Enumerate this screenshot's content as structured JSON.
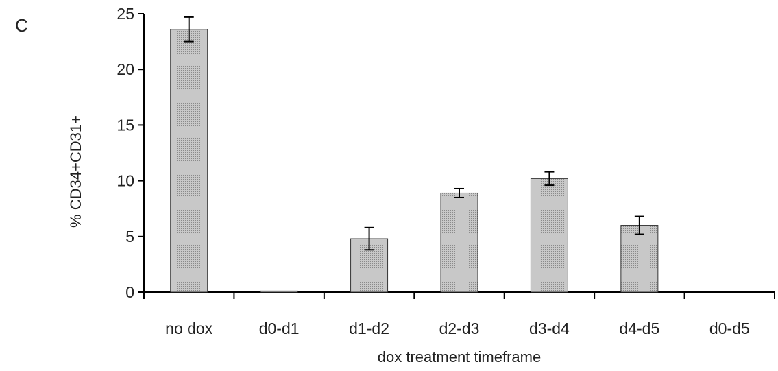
{
  "panel_label": "C",
  "chart_data": {
    "type": "bar",
    "title": "",
    "xlabel": "dox treatment timeframe",
    "ylabel": "% CD34+CD31+",
    "categories": [
      "no dox",
      "d0-d1",
      "d1-d2",
      "d2-d3",
      "d3-d4",
      "d4-d5",
      "d0-d5"
    ],
    "values": [
      23.6,
      0.1,
      4.8,
      8.9,
      10.2,
      6.0,
      0
    ],
    "errors": [
      1.1,
      0,
      1.0,
      0.4,
      0.6,
      0.8,
      0
    ],
    "ylim": [
      0,
      25
    ],
    "yticks": [
      "0",
      "5",
      "10",
      "15",
      "20",
      "25"
    ],
    "grid": false,
    "bar_fill": "#c8c8c8",
    "bar_stroke": "#333333"
  }
}
